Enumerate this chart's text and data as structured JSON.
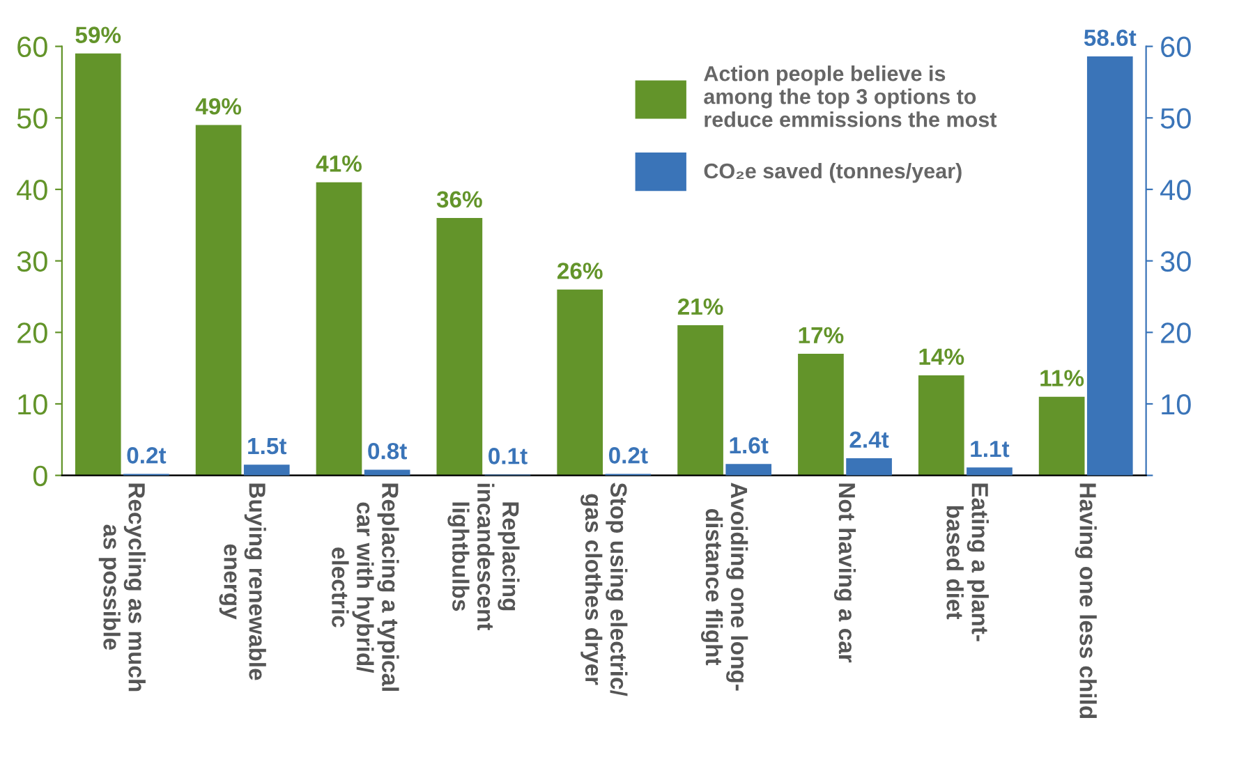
{
  "chart_data": {
    "type": "bar",
    "categories": [
      "Recycling as much\nas possible",
      "Buying renewable\nenergy",
      "Replacing a typical\ncar with hybrid/\nelectric",
      "Replacing\nincandescent\nlightbulbs",
      "Stop using electric/\ngas clothes dryer",
      "Avoiding one long-\ndistance flight",
      "Not having a car",
      "Eating a plant-\nbased diet",
      "Having one less child"
    ],
    "series": [
      {
        "name": "Action people believe is\namong the top 3 options to\nreduce emmissions the most",
        "color": "#63942a",
        "values": [
          59,
          49,
          41,
          36,
          26,
          21,
          17,
          14,
          11
        ],
        "value_labels": [
          "59%",
          "49%",
          "41%",
          "36%",
          "26%",
          "21%",
          "17%",
          "14%",
          "11%"
        ]
      },
      {
        "name": "CO₂e saved (tonnes/year)",
        "color": "#3a74b8",
        "axis": "y2",
        "values": [
          0.2,
          1.5,
          0.8,
          0.1,
          0.2,
          1.6,
          2.4,
          1.1,
          58.6
        ],
        "value_labels": [
          "0.2t",
          "1.5t",
          "0.8t",
          "0.1t",
          "0.2t",
          "1.6t",
          "2.4t",
          "1.1t",
          "58.6t"
        ]
      }
    ],
    "ylim": [
      0,
      60
    ],
    "yticks": [
      0,
      10,
      20,
      30,
      40,
      50,
      60
    ],
    "y2lim": [
      0,
      60
    ],
    "y2ticks": [
      {
        "value": 0,
        "label": null
      },
      10,
      20,
      30,
      40,
      50,
      60
    ],
    "legend": "top right",
    "grid": false
  }
}
